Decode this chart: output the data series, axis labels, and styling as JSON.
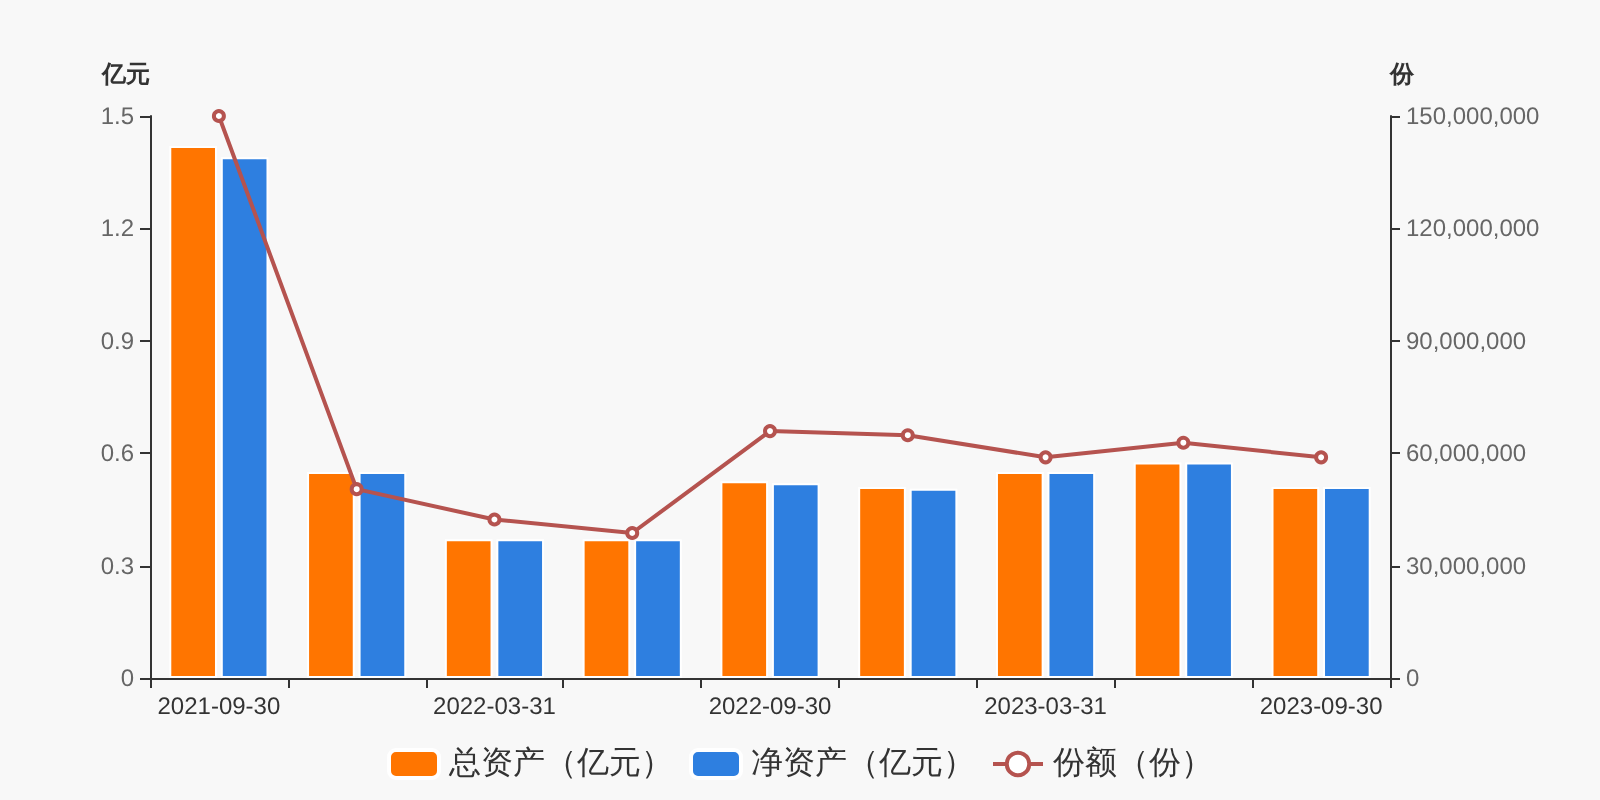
{
  "chart_data": {
    "type": "bar",
    "categories": [
      "2021-09-30",
      null,
      "2022-03-31",
      null,
      "2022-09-30",
      null,
      "2023-03-31",
      null,
      "2023-09-30"
    ],
    "series": [
      {
        "name": "总资产（亿元）",
        "color": "#ff7500",
        "values": [
          1.42,
          0.55,
          0.37,
          0.37,
          0.525,
          0.51,
          0.55,
          0.575,
          0.51
        ]
      },
      {
        "name": "净资产（亿元）",
        "color": "#2e7fe0",
        "values": [
          1.39,
          0.55,
          0.37,
          0.37,
          0.52,
          0.505,
          0.55,
          0.575,
          0.51
        ]
      },
      {
        "name": "份额（份）",
        "type": "line",
        "axis": "y2",
        "color": "#b5534f",
        "values": [
          150000000,
          50400000,
          42300000,
          38700000,
          65900000,
          64800000,
          58900000,
          62800000,
          58900000
        ]
      }
    ],
    "ylabel": "亿元",
    "y2label": "份",
    "ylim": [
      0,
      1.5
    ],
    "yticks": [
      0,
      0.3,
      0.6,
      0.9,
      1.2,
      1.5
    ],
    "y2lim": [
      0,
      150000000
    ],
    "y2ticks": [
      0,
      {
        "value": 30000000,
        "label": "30,000,000"
      },
      {
        "value": 60000000,
        "label": "60,000,000"
      },
      {
        "value": 90000000,
        "label": "90,000,000"
      },
      {
        "value": 120000000,
        "label": "120,000,000"
      },
      {
        "value": 150000000,
        "label": "150,000,000"
      }
    ],
    "grid": false,
    "legend": "bottom",
    "marker": "circle",
    "line_style": "solid"
  }
}
